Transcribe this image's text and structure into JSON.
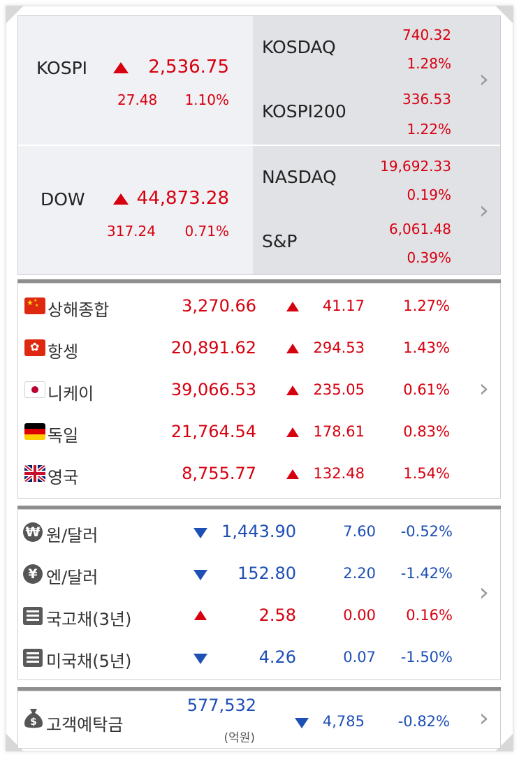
{
  "indices": {
    "kospi": {
      "name": "KOSPI",
      "value": "2,536.75",
      "change": "27.48",
      "rate": "1.10%"
    },
    "kosdaq": {
      "name": "KOSDAQ",
      "value": "740.32",
      "rate": "1.28%"
    },
    "kospi200": {
      "name": "KOSPI200",
      "value": "336.53",
      "rate": "1.22%"
    },
    "dow": {
      "name": "DOW",
      "value": "44,873.28",
      "change": "317.24",
      "rate": "0.71%"
    },
    "nasdaq": {
      "name": "NASDAQ",
      "value": "19,692.33",
      "rate": "0.19%"
    },
    "sp": {
      "name": "S&P",
      "value": "6,061.48",
      "rate": "0.39%"
    }
  },
  "global": [
    {
      "name": "상해종합",
      "value": "3,270.66",
      "change": "41.17",
      "rate": "1.27%",
      "flag": "china-flag-icon"
    },
    {
      "name": "항셍",
      "value": "20,891.62",
      "change": "294.53",
      "rate": "1.43%",
      "flag": "hongkong-flag-icon"
    },
    {
      "name": "니케이",
      "value": "39,066.53",
      "change": "235.05",
      "rate": "0.61%",
      "flag": "japan-flag-icon"
    },
    {
      "name": "독일",
      "value": "21,764.54",
      "change": "178.61",
      "rate": "0.83%",
      "flag": "germany-flag-icon"
    },
    {
      "name": "영국",
      "value": "8,755.77",
      "change": "132.48",
      "rate": "1.54%",
      "flag": "uk-flag-icon"
    }
  ],
  "fx": [
    {
      "name": "원/달러",
      "value": "1,443.90",
      "change": "7.60",
      "rate": "-0.52%",
      "direction": "down",
      "icon": "won-icon",
      "glyph": "₩"
    },
    {
      "name": "엔/달러",
      "value": "152.80",
      "change": "2.20",
      "rate": "-1.42%",
      "direction": "down",
      "icon": "yen-icon",
      "glyph": "¥"
    },
    {
      "name": "국고채(3년)",
      "value": "2.58",
      "change": "0.00",
      "rate": "0.16%",
      "direction": "up",
      "icon": "list-icon"
    },
    {
      "name": "미국채(5년)",
      "value": "4.26",
      "change": "0.07",
      "rate": "-1.50%",
      "direction": "down",
      "icon": "list-icon"
    }
  ],
  "deposit": {
    "name": "고객예탁금",
    "value": "577,532",
    "unit": "(억원)",
    "change": "4,785",
    "rate": "-0.82%",
    "icon": "money-bag-icon"
  },
  "colors": {
    "up": "#d7000f",
    "down": "#1e4fb5"
  }
}
